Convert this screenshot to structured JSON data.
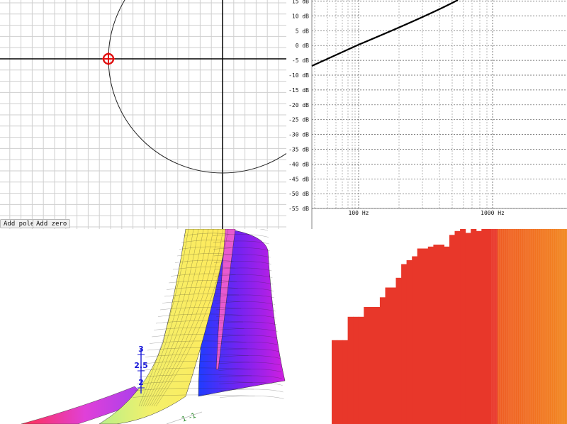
{
  "pole_zero_plot": {
    "buttons": {
      "add_pole": "Add pole",
      "add_zero": "Add zero"
    }
  },
  "bode_plot": {
    "y_tick_labels": [
      "15 dB",
      "10 dB",
      "5 dB",
      "0 dB",
      "-5 dB",
      "-10 dB",
      "-15 dB",
      "-20 dB",
      "-25 dB",
      "-30 dB",
      "-35 dB",
      "-40 dB",
      "-45 dB",
      "-50 dB",
      "-55 dB"
    ],
    "x_tick_labels": [
      "100 Hz",
      "1000 Hz"
    ],
    "line_color": "#000000"
  },
  "surface_plot": {
    "z_tick_labels": [
      "3",
      "2.5",
      "2"
    ],
    "axis_labels": [
      "1",
      "-1"
    ],
    "z_axis_color": "#1a1ad8"
  },
  "spectrum": {
    "bar_color": "#e8372a",
    "levels": [
      0.43,
      0.43,
      0.43,
      0.55,
      0.55,
      0.55,
      0.6,
      0.6,
      0.6,
      0.65,
      0.7,
      0.7,
      0.75,
      0.82,
      0.84,
      0.86,
      0.9,
      0.9,
      0.91,
      0.92,
      0.92,
      0.91,
      0.97,
      0.99,
      1.0,
      0.98,
      1.0,
      0.99,
      1.0,
      1.0,
      1.0,
      1.0,
      1.0,
      1.0,
      1.0,
      1.0,
      1.0,
      1.0,
      1.0,
      1.0,
      1.0,
      1.0,
      1.0,
      1.0
    ]
  }
}
